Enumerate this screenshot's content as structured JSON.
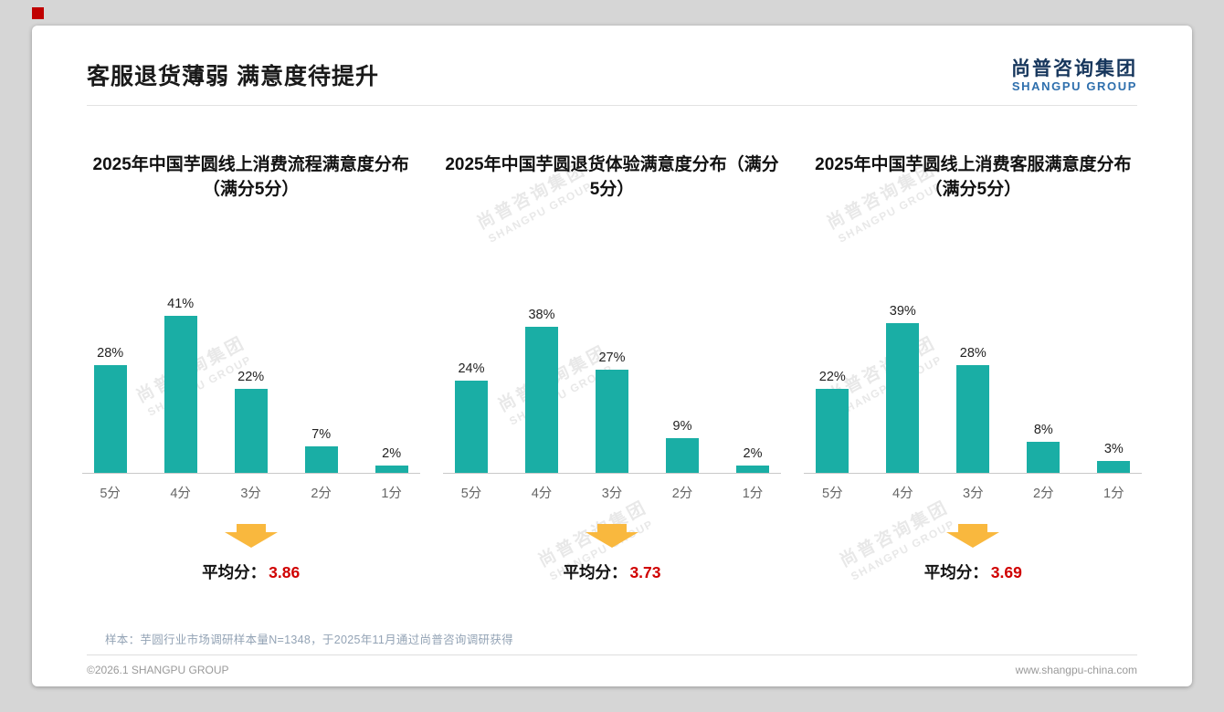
{
  "header": {
    "title": "客服退货薄弱 满意度待提升",
    "logo_cn": "尚普咨询集团",
    "logo_en": "SHANGPU GROUP"
  },
  "watermark": {
    "cn": "尚普咨询集团",
    "en": "SHANGPU GROUP"
  },
  "chart_data": [
    {
      "type": "bar",
      "title": "2025年中国芋圆线上消费流程满意度分布（满分5分）",
      "categories": [
        "5分",
        "4分",
        "3分",
        "2分",
        "1分"
      ],
      "values": [
        28,
        41,
        22,
        7,
        2
      ],
      "value_suffix": "%",
      "ylim": [
        0,
        45
      ],
      "grid": false,
      "average_label": "平均分：",
      "average": "3.86"
    },
    {
      "type": "bar",
      "title": "2025年中国芋圆退货体验满意度分布（满分5分）",
      "categories": [
        "5分",
        "4分",
        "3分",
        "2分",
        "1分"
      ],
      "values": [
        24,
        38,
        27,
        9,
        2
      ],
      "value_suffix": "%",
      "ylim": [
        0,
        45
      ],
      "grid": false,
      "average_label": "平均分：",
      "average": "3.73"
    },
    {
      "type": "bar",
      "title": "2025年中国芋圆线上消费客服满意度分布（满分5分）",
      "categories": [
        "5分",
        "4分",
        "3分",
        "2分",
        "1分"
      ],
      "values": [
        22,
        39,
        28,
        8,
        3
      ],
      "value_suffix": "%",
      "ylim": [
        0,
        45
      ],
      "grid": false,
      "average_label": "平均分：",
      "average": "3.69"
    }
  ],
  "colors": {
    "bar": "#1aaea5",
    "average_value": "#d00000",
    "arrow": "#f9b83e",
    "corner_accent": "#c00000",
    "logo_cn": "#16365c",
    "logo_en": "#2e6fad"
  },
  "footnote": "样本：芋圆行业市场调研样本量N=1348，于2025年11月通过尚普咨询调研获得",
  "footer": {
    "left": "©2026.1 SHANGPU GROUP",
    "right": "www.shangpu-china.com"
  }
}
